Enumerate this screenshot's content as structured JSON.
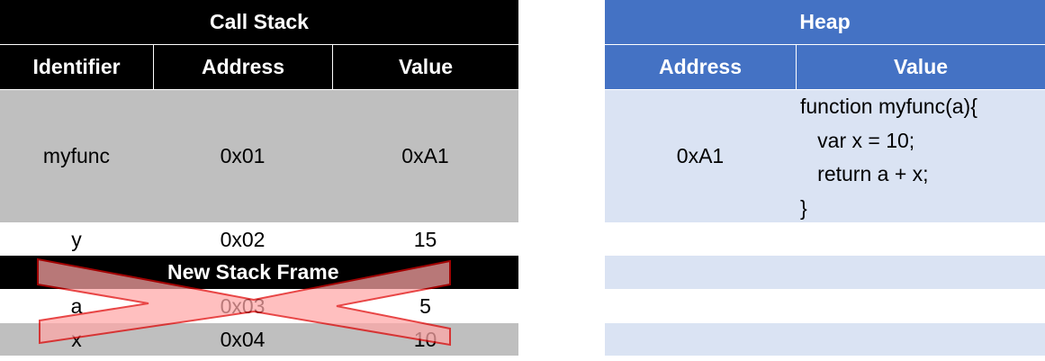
{
  "call_stack": {
    "title": "Call Stack",
    "columns": [
      "Identifier",
      "Address",
      "Value"
    ],
    "rows": [
      {
        "identifier": "myfunc",
        "address": "0x01",
        "value": "0xA1"
      },
      {
        "identifier": "y",
        "address": "0x02",
        "value": "15"
      }
    ],
    "frame_label": "New Stack Frame",
    "frame_rows": [
      {
        "identifier": "a",
        "address": "0x03",
        "value": "5"
      },
      {
        "identifier": "x",
        "address": "0x04",
        "value": "10"
      }
    ]
  },
  "heap": {
    "title": "Heap",
    "columns": [
      "Address",
      "Value"
    ],
    "row": {
      "address": "0xA1",
      "code_lines": [
        "function myfunc(a){",
        "   var x = 10;",
        "   return a + x;",
        "}"
      ]
    }
  },
  "colors": {
    "stack_header": "#000000",
    "heap_header": "#4472c4",
    "stack_row_gray": "#bfbfbf",
    "heap_row": "#dae3f3",
    "cross_fill": "#ffa7a7",
    "cross_stroke": "#e00000"
  }
}
